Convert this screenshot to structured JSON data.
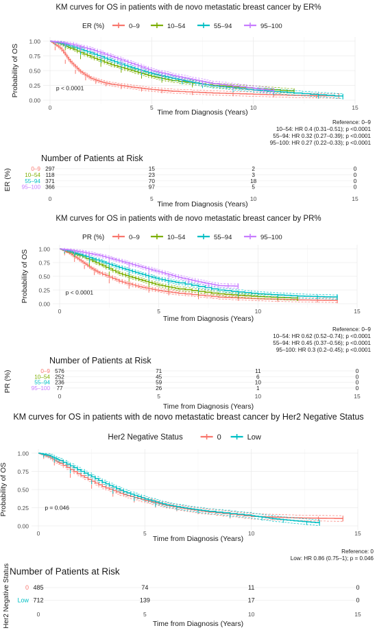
{
  "chart_data": [
    {
      "type": "line",
      "title": "KM curves for OS in patients with de novo metastatic breast cancer by ER%",
      "legend_title": "ER (%)",
      "legend_position": "top",
      "xlabel": "Time from Diagnosis (Years)",
      "ylabel": "Probability of OS",
      "xlim": [
        0,
        15
      ],
      "ylim": [
        0,
        1
      ],
      "x_ticks": [
        0,
        5,
        10,
        15
      ],
      "y_ticks": [
        "0.00",
        "0.25",
        "0.50",
        "0.75",
        "1.00"
      ],
      "grid": true,
      "pvalue": "p < 0.0001",
      "series": [
        {
          "name": "0–9",
          "color": "#F8766D",
          "x": [
            0,
            0.5,
            1,
            1.5,
            2,
            2.5,
            3,
            4,
            5,
            6,
            8,
            10,
            12,
            14.2
          ],
          "y": [
            1.0,
            0.88,
            0.65,
            0.48,
            0.37,
            0.31,
            0.27,
            0.22,
            0.18,
            0.15,
            0.12,
            0.1,
            0.08,
            0.07
          ]
        },
        {
          "name": "10–54",
          "color": "#7CAE00",
          "x": [
            0,
            0.5,
            1,
            2,
            3,
            4,
            5,
            6,
            8,
            10,
            12
          ],
          "y": [
            1.0,
            0.96,
            0.88,
            0.73,
            0.6,
            0.5,
            0.4,
            0.33,
            0.25,
            0.2,
            0.15
          ]
        },
        {
          "name": "55–94",
          "color": "#00BFC4",
          "x": [
            0,
            0.5,
            1,
            2,
            3,
            4,
            5,
            6,
            7,
            8,
            10,
            12,
            14.4
          ],
          "y": [
            1.0,
            0.97,
            0.92,
            0.8,
            0.67,
            0.55,
            0.45,
            0.37,
            0.3,
            0.24,
            0.17,
            0.12,
            0.06
          ]
        },
        {
          "name": "95–100",
          "color": "#C77CFF",
          "x": [
            0,
            0.5,
            1,
            2,
            3,
            4,
            5,
            6,
            7,
            8,
            10,
            11
          ],
          "y": [
            1.0,
            0.98,
            0.95,
            0.86,
            0.74,
            0.62,
            0.5,
            0.42,
            0.35,
            0.28,
            0.2,
            0.16
          ]
        }
      ],
      "reference": [
        "Reference: 0–9",
        "10–54: HR 0.4 (0.31–0.51); p <0.0001",
        "55–94: HR 0.32 (0.27–0.39); p <0.0001",
        "95–100: HR 0.27 (0.22–0.33); p <0.0001"
      ],
      "risk_table": {
        "title": "Number of Patients at Risk",
        "ylabel": "ER (%)",
        "xlabel": "Time from Diagnosis (Years)",
        "times": [
          0,
          5,
          10,
          15
        ],
        "rows": [
          {
            "label": "0–9",
            "color": "#F8766D",
            "counts": [
              "297",
              "15",
              "2",
              "0"
            ]
          },
          {
            "label": "10–54",
            "color": "#7CAE00",
            "counts": [
              "118",
              "23",
              "3",
              "0"
            ]
          },
          {
            "label": "55–94",
            "color": "#00BFC4",
            "counts": [
              "371",
              "70",
              "18",
              "0"
            ]
          },
          {
            "label": "95–100",
            "color": "#C77CFF",
            "counts": [
              "366",
              "97",
              "5",
              "0"
            ]
          }
        ]
      }
    },
    {
      "type": "line",
      "title": "KM curves for OS in patients with de novo metastatic breast cancer by PR%",
      "legend_title": "PR (%)",
      "legend_position": "top",
      "xlabel": "Time from Diagnosis (Years)",
      "ylabel": "Probability of OS",
      "xlim": [
        0,
        15
      ],
      "ylim": [
        0,
        1
      ],
      "x_ticks": [
        0,
        5,
        10,
        15
      ],
      "y_ticks": [
        "0.00",
        "0.25",
        "0.50",
        "0.75",
        "1.00"
      ],
      "grid": true,
      "pvalue": "p < 0.0001",
      "series": [
        {
          "name": "0–9",
          "color": "#F8766D",
          "x": [
            0,
            0.5,
            1,
            1.5,
            2,
            3,
            4,
            5,
            6,
            8,
            10,
            12,
            14
          ],
          "y": [
            1.0,
            0.92,
            0.8,
            0.67,
            0.56,
            0.41,
            0.31,
            0.24,
            0.19,
            0.12,
            0.09,
            0.07,
            0.06
          ]
        },
        {
          "name": "10–54",
          "color": "#7CAE00",
          "x": [
            0,
            0.5,
            1,
            2,
            3,
            4,
            5,
            6,
            8,
            10,
            12
          ],
          "y": [
            1.0,
            0.95,
            0.88,
            0.72,
            0.55,
            0.44,
            0.34,
            0.27,
            0.18,
            0.13,
            0.1
          ]
        },
        {
          "name": "55–94",
          "color": "#00BFC4",
          "x": [
            0,
            0.5,
            1,
            2,
            3,
            4,
            5,
            6,
            8,
            10,
            12,
            14
          ],
          "y": [
            1.0,
            0.96,
            0.9,
            0.78,
            0.66,
            0.55,
            0.45,
            0.38,
            0.25,
            0.18,
            0.14,
            0.12
          ]
        },
        {
          "name": "95–100",
          "color": "#C77CFF",
          "x": [
            0,
            0.5,
            1,
            2,
            3,
            4,
            5,
            6,
            7,
            8,
            9
          ],
          "y": [
            1.0,
            0.98,
            0.95,
            0.88,
            0.78,
            0.68,
            0.58,
            0.48,
            0.4,
            0.33,
            0.32
          ]
        }
      ],
      "reference": [
        "Reference: 0–9",
        "10–54: HR 0.62 (0.52–0.74); p <0.0001",
        "55–94: HR 0.45 (0.37–0.56); p <0.0001",
        "95–100: HR 0.3 (0.2–0.45); p <0.0001"
      ],
      "risk_table": {
        "title": "Number of Patients at Risk",
        "ylabel": "PR (%)",
        "xlabel": "Time from Diagnosis (Years)",
        "times": [
          0,
          5,
          10,
          15
        ],
        "rows": [
          {
            "label": "0–9",
            "color": "#F8766D",
            "counts": [
              "576",
              "71",
              "11",
              "0"
            ]
          },
          {
            "label": "10–54",
            "color": "#7CAE00",
            "counts": [
              "252",
              "45",
              "6",
              "0"
            ]
          },
          {
            "label": "55–94",
            "color": "#00BFC4",
            "counts": [
              "236",
              "59",
              "10",
              "0"
            ]
          },
          {
            "label": "95–100",
            "color": "#C77CFF",
            "counts": [
              "77",
              "26",
              "1",
              "0"
            ]
          }
        ]
      }
    },
    {
      "type": "line",
      "title": "KM curves for OS in patients with de novo metastatic breast cancer by Her2 Negative Status",
      "legend_title": "Her2 Negative Status",
      "legend_position": "top",
      "xlabel": "Time from Diagnosis (Years)",
      "ylabel": "Probability of OS",
      "xlim": [
        0,
        15
      ],
      "ylim": [
        0,
        1
      ],
      "x_ticks": [
        0,
        5,
        10,
        15
      ],
      "y_ticks": [
        "0.00",
        "0.25",
        "0.50",
        "0.75",
        "1.00"
      ],
      "grid": true,
      "pvalue": "p = 0.046",
      "series": [
        {
          "name": "0",
          "color": "#F8766D",
          "x": [
            0,
            0.5,
            1,
            2,
            3,
            4,
            5,
            6,
            7,
            8,
            10,
            12,
            14.3
          ],
          "y": [
            1.0,
            0.95,
            0.86,
            0.69,
            0.54,
            0.43,
            0.35,
            0.28,
            0.23,
            0.19,
            0.13,
            0.11,
            0.1
          ]
        },
        {
          "name": "Low",
          "color": "#00BFC4",
          "x": [
            0,
            0.5,
            1,
            2,
            3,
            4,
            5,
            6,
            7,
            8,
            10,
            11,
            12,
            13.2
          ],
          "y": [
            1.0,
            0.97,
            0.9,
            0.75,
            0.6,
            0.47,
            0.37,
            0.29,
            0.24,
            0.2,
            0.14,
            0.1,
            0.07,
            0.04
          ]
        }
      ],
      "reference": [
        "Reference: 0",
        "Low: HR 0.86 (0.75–1); p = 0.046"
      ],
      "risk_table": {
        "title": "Number of Patients at Risk",
        "ylabel": "Her2 Negative Status",
        "xlabel": "Time from Diagnosis (Years)",
        "times": [
          0,
          5,
          10,
          15
        ],
        "rows": [
          {
            "label": "0",
            "color": "#F8766D",
            "counts": [
              "485",
              "74",
              "11",
              "0"
            ]
          },
          {
            "label": "Low",
            "color": "#00BFC4",
            "counts": [
              "712",
              "139",
              "17",
              "0"
            ]
          }
        ]
      }
    }
  ]
}
